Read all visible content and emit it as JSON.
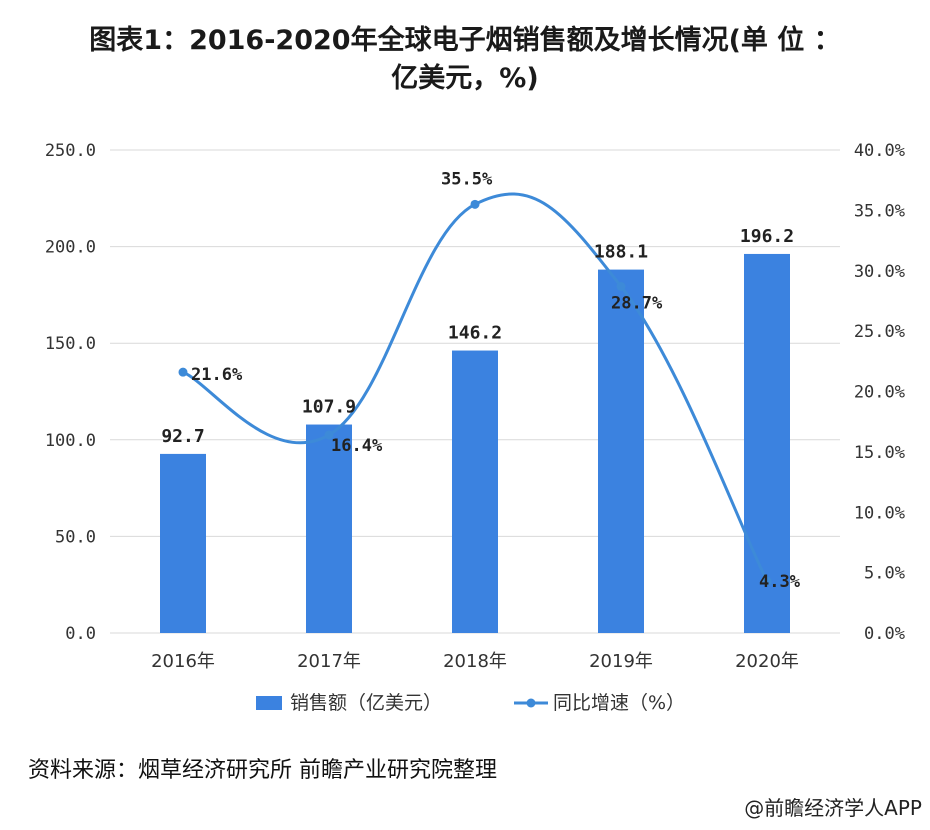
{
  "title": {
    "line1": "图表1：2016-2020年全球电子烟销售额及增长情况(单 位 ：",
    "line2": "亿美元，%)"
  },
  "footer": {
    "source": "资料来源：烟草经济研究所 前瞻产业研究院整理",
    "credit": "@前瞻经济学人APP"
  },
  "colors": {
    "bar": "#3b82e0",
    "line": "#3d8ad8",
    "grid": "#d9d9d9"
  },
  "chart_data": {
    "type": "bar",
    "categories": [
      "2016年",
      "2017年",
      "2018年",
      "2019年",
      "2020年"
    ],
    "series": [
      {
        "name": "销售额（亿美元）",
        "type": "bar",
        "axis": "left",
        "values": [
          92.7,
          107.9,
          146.2,
          188.1,
          196.2
        ],
        "labels": [
          "92.7",
          "107.9",
          "146.2",
          "188.1",
          "196.2"
        ]
      },
      {
        "name": "同比增速（%）",
        "type": "line",
        "axis": "right",
        "smooth": true,
        "values": [
          21.6,
          16.4,
          35.5,
          28.7,
          4.3
        ],
        "labels": [
          "21.6%",
          "16.4%",
          "35.5%",
          "28.7%",
          "4.3%"
        ]
      }
    ],
    "y_left": {
      "min": 0,
      "max": 250,
      "ticks": [
        "0.0",
        "50.0",
        "100.0",
        "150.0",
        "200.0",
        "250.0"
      ]
    },
    "y_right": {
      "min": 0,
      "max": 40,
      "ticks": [
        "0.0%",
        "5.0%",
        "10.0%",
        "15.0%",
        "20.0%",
        "25.0%",
        "30.0%",
        "35.0%",
        "40.0%"
      ]
    },
    "grid": true,
    "legend_position": "bottom"
  }
}
